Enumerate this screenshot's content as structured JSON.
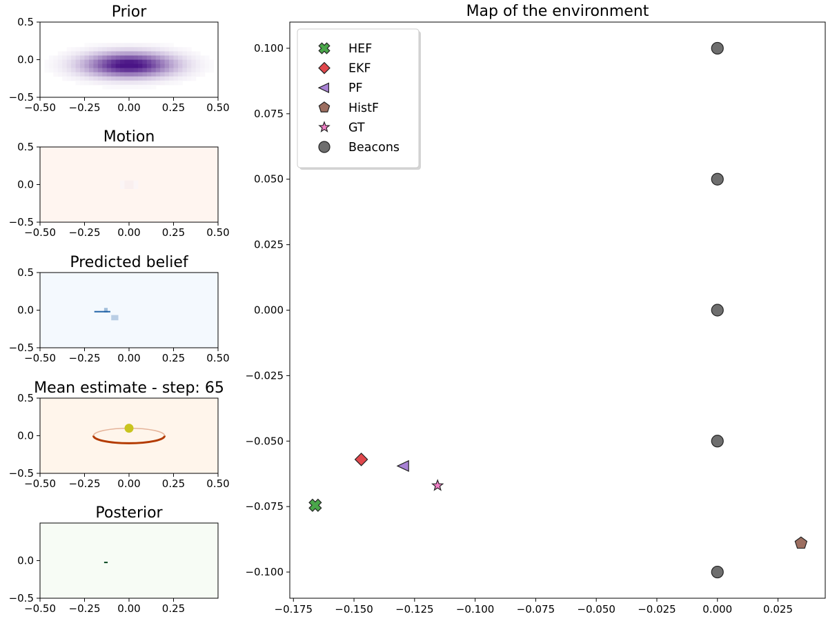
{
  "chart_data": [
    {
      "id": "prior",
      "type": "heatmap",
      "title": "Prior",
      "colormap": "Purples",
      "color": "#4a1486",
      "xlim": [
        -0.5,
        0.5
      ],
      "ylim": [
        -0.5,
        0.5
      ],
      "xticks": [
        "−0.50",
        "−0.25",
        "0.00",
        "0.25",
        "0.50"
      ],
      "yticks": [
        "0.5",
        "0.0",
        "−0.5"
      ],
      "distribution": {
        "center": [
          0.0,
          -0.07
        ],
        "sigma": [
          0.17,
          0.11
        ]
      }
    },
    {
      "id": "motion",
      "type": "heatmap",
      "title": "Motion",
      "colormap": "Reds",
      "color": "#a50f15",
      "background": "#fff5f0",
      "xlim": [
        -0.5,
        0.5
      ],
      "ylim": [
        -0.5,
        0.5
      ],
      "xticks": [
        "−0.50",
        "−0.25",
        "0.00",
        "0.25",
        "0.50"
      ],
      "yticks": [
        "0.5",
        "0.0",
        "−0.5"
      ],
      "distribution": {
        "center": [
          0.0,
          0.0
        ],
        "sigma": [
          0.035,
          0.012
        ]
      }
    },
    {
      "id": "predicted",
      "type": "heatmap",
      "title": "Predicted belief",
      "colormap": "Blues",
      "color": "#08519c",
      "background": "#f4f9fe",
      "xlim": [
        -0.5,
        0.5
      ],
      "ylim": [
        -0.5,
        0.5
      ],
      "xticks": [
        "−0.50",
        "−0.25",
        "0.00",
        "0.25",
        "0.50"
      ],
      "yticks": [
        "0.5",
        "0.0",
        "−0.5"
      ],
      "features": [
        {
          "x": -0.15,
          "y": -0.02,
          "w": 0.09,
          "h": 0.018,
          "opacity": 0.9
        },
        {
          "x": -0.13,
          "y": 0.0,
          "w": 0.02,
          "h": 0.06,
          "opacity": 0.35
        },
        {
          "x": -0.08,
          "y": -0.1,
          "w": 0.04,
          "h": 0.07,
          "opacity": 0.25
        }
      ]
    },
    {
      "id": "mean",
      "type": "heatmap",
      "title": "Mean estimate - step: 65",
      "colormap": "Oranges",
      "color": "#b33a00",
      "background": "#fff5eb",
      "xlim": [
        -0.5,
        0.5
      ],
      "ylim": [
        -0.5,
        0.5
      ],
      "xticks": [
        "−0.50",
        "−0.25",
        "0.00",
        "0.25",
        "0.50"
      ],
      "yticks": [
        "0.5",
        "0.0",
        "−0.5"
      ],
      "ring": {
        "center": [
          0.0,
          0.0
        ],
        "rx": 0.2,
        "ry": 0.1
      },
      "marker": {
        "x": 0.0,
        "y": 0.1,
        "color": "#c9c41f"
      }
    },
    {
      "id": "posterior",
      "type": "heatmap",
      "title": "Posterior",
      "colormap": "Greens",
      "color": "#00441b",
      "background": "#f7fcf5",
      "xlim": [
        -0.5,
        0.5
      ],
      "ylim": [
        -0.5,
        0.5
      ],
      "xticks": [
        "−0.50",
        "−0.25",
        "0.00",
        "0.25"
      ],
      "yticks": [
        "0.0",
        "−0.5"
      ],
      "features": [
        {
          "x": -0.13,
          "y": -0.02,
          "w": 0.02,
          "h": 0.01,
          "opacity": 1.0
        }
      ]
    },
    {
      "id": "map",
      "type": "scatter",
      "title": "Map of the environment",
      "xlim": [
        -0.1765,
        0.0445
      ],
      "ylim": [
        -0.11,
        0.11
      ],
      "xticks": [
        {
          "v": -0.175,
          "label": "−0.175"
        },
        {
          "v": -0.15,
          "label": "−0.150"
        },
        {
          "v": -0.125,
          "label": "−0.125"
        },
        {
          "v": -0.1,
          "label": "−0.100"
        },
        {
          "v": -0.075,
          "label": "−0.075"
        },
        {
          "v": -0.05,
          "label": "−0.050"
        },
        {
          "v": -0.025,
          "label": "−0.025"
        },
        {
          "v": 0.0,
          "label": "0.000"
        },
        {
          "v": 0.025,
          "label": "0.025"
        }
      ],
      "yticks": [
        {
          "v": 0.1,
          "label": "0.100"
        },
        {
          "v": 0.075,
          "label": "0.075"
        },
        {
          "v": 0.05,
          "label": "0.050"
        },
        {
          "v": 0.025,
          "label": "0.025"
        },
        {
          "v": 0.0,
          "label": "0.000"
        },
        {
          "v": -0.025,
          "label": "−0.025"
        },
        {
          "v": -0.05,
          "label": "−0.050"
        },
        {
          "v": -0.075,
          "label": "−0.075"
        },
        {
          "v": -0.1,
          "label": "−0.100"
        }
      ],
      "legend_position": "top-left",
      "series": [
        {
          "name": "HEF",
          "marker": "x-filled",
          "color": "#4aa64a",
          "points": [
            [
              -0.166,
              -0.0745
            ]
          ]
        },
        {
          "name": "EKF",
          "marker": "diamond",
          "color": "#e0474c",
          "points": [
            [
              -0.147,
              -0.057
            ]
          ]
        },
        {
          "name": "PF",
          "marker": "triangle-left",
          "color": "#a882d4",
          "points": [
            [
              -0.1295,
              -0.0595
            ]
          ]
        },
        {
          "name": "HistF",
          "marker": "pentagon",
          "color": "#9c6e60",
          "points": [
            [
              0.0345,
              -0.089
            ]
          ]
        },
        {
          "name": "GT",
          "marker": "star",
          "color": "#f07fc6",
          "points": [
            [
              -0.1155,
              -0.067
            ]
          ]
        },
        {
          "name": "Beacons",
          "marker": "circle",
          "color": "#6e6e6e",
          "points": [
            [
              0.0,
              0.1
            ],
            [
              0.0,
              0.05
            ],
            [
              0.0,
              0.0
            ],
            [
              0.0,
              -0.05
            ],
            [
              0.0,
              -0.1
            ]
          ]
        }
      ]
    }
  ]
}
